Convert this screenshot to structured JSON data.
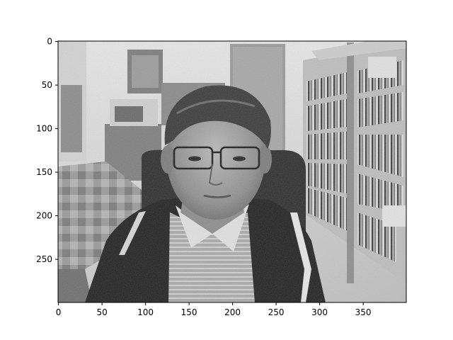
{
  "chart_data": {
    "type": "image",
    "title": "",
    "xlabel": "",
    "ylabel": "",
    "image_width": 400,
    "image_height": 300,
    "xlim": [
      -0.5,
      399.5
    ],
    "ylim": [
      299.5,
      -0.5
    ],
    "colormap": "gray",
    "grid": false,
    "content": "grayscale webcam photo of a man with glasses in a dark jacket seated in an office chair in front of bookshelves",
    "x_ticks": [
      0,
      50,
      100,
      150,
      200,
      250,
      300,
      350
    ],
    "y_ticks": [
      0,
      50,
      100,
      150,
      200,
      250
    ],
    "x_tick_labels": [
      "0",
      "50",
      "100",
      "150",
      "200",
      "250",
      "300",
      "350"
    ],
    "y_tick_labels": [
      "0",
      "50",
      "100",
      "150",
      "200",
      "250"
    ]
  },
  "style": {
    "axis_color": "#000000",
    "background": "#ffffff"
  }
}
